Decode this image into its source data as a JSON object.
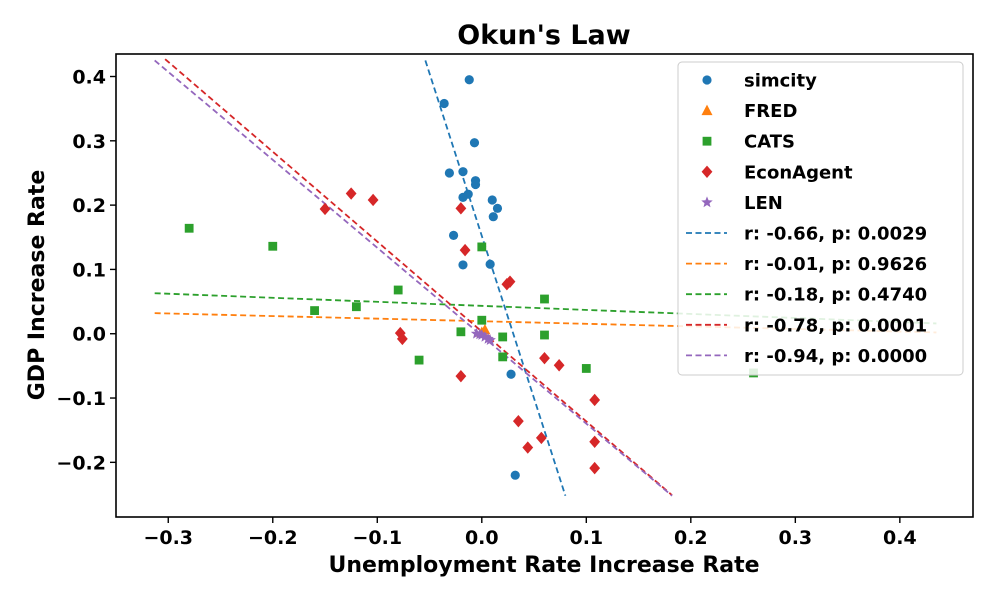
{
  "chart_data": {
    "type": "scatter",
    "title": "Okun's Law",
    "xlabel": "Unemployment Rate Increase Rate",
    "ylabel": "GDP Increase Rate",
    "xlim": [
      -0.35,
      0.47
    ],
    "ylim": [
      -0.285,
      0.435
    ],
    "xticks": [
      -0.3,
      -0.2,
      -0.1,
      0.0,
      0.1,
      0.2,
      0.3,
      0.4
    ],
    "xtick_labels": [
      "−0.3",
      "−0.2",
      "−0.1",
      "0.0",
      "0.1",
      "0.2",
      "0.3",
      "0.4"
    ],
    "yticks": [
      0.4,
      0.3,
      0.2,
      0.1,
      0.0,
      -0.1,
      -0.2
    ],
    "ytick_labels": [
      "0.4",
      "0.3",
      "0.2",
      "0.1",
      "0.0",
      "−0.1",
      "−0.2"
    ],
    "legend_position": "top-right",
    "series": [
      {
        "name": "simcity",
        "marker": "circle",
        "color": "#1f77b4",
        "points": [
          [
            -0.012,
            0.395
          ],
          [
            -0.036,
            0.358
          ],
          [
            -0.007,
            0.297
          ],
          [
            -0.031,
            0.25
          ],
          [
            -0.018,
            0.252
          ],
          [
            -0.006,
            0.238
          ],
          [
            -0.006,
            0.232
          ],
          [
            -0.018,
            0.212
          ],
          [
            -0.013,
            0.217
          ],
          [
            0.01,
            0.208
          ],
          [
            0.015,
            0.195
          ],
          [
            0.011,
            0.182
          ],
          [
            -0.027,
            0.153
          ],
          [
            0.008,
            0.108
          ],
          [
            -0.018,
            0.107
          ],
          [
            0.028,
            -0.063
          ],
          [
            0.032,
            -0.22
          ]
        ]
      },
      {
        "name": "FRED",
        "marker": "triangle",
        "color": "#ff7f0e",
        "points": [
          [
            0.003,
            0.006
          ],
          [
            0.0,
            0.002
          ]
        ]
      },
      {
        "name": "CATS",
        "marker": "square",
        "color": "#2ca02c",
        "points": [
          [
            -0.28,
            0.164
          ],
          [
            -0.2,
            0.136
          ],
          [
            -0.16,
            0.036
          ],
          [
            -0.12,
            0.042
          ],
          [
            -0.08,
            0.068
          ],
          [
            -0.06,
            -0.041
          ],
          [
            -0.02,
            0.003
          ],
          [
            0.0,
            0.021
          ],
          [
            0.0,
            0.135
          ],
          [
            0.02,
            -0.005
          ],
          [
            0.02,
            -0.036
          ],
          [
            0.06,
            0.054
          ],
          [
            0.06,
            -0.002
          ],
          [
            0.1,
            -0.054
          ],
          [
            0.26,
            -0.061
          ]
        ]
      },
      {
        "name": "EconAgent",
        "marker": "diamond",
        "color": "#d62728",
        "points": [
          [
            -0.15,
            0.194
          ],
          [
            -0.125,
            0.218
          ],
          [
            -0.104,
            0.208
          ],
          [
            -0.078,
            0.001
          ],
          [
            -0.076,
            -0.008
          ],
          [
            -0.02,
            0.195
          ],
          [
            -0.016,
            0.13
          ],
          [
            -0.02,
            -0.066
          ],
          [
            0.024,
            0.077
          ],
          [
            0.027,
            0.081
          ],
          [
            0.035,
            -0.136
          ],
          [
            0.044,
            -0.177
          ],
          [
            0.057,
            -0.162
          ],
          [
            0.06,
            -0.038
          ],
          [
            0.074,
            -0.049
          ],
          [
            0.108,
            -0.103
          ],
          [
            0.108,
            -0.168
          ],
          [
            0.108,
            -0.209
          ]
        ]
      },
      {
        "name": "LEN",
        "marker": "star",
        "color": "#9467bd",
        "points": [
          [
            -0.005,
            0.0
          ],
          [
            0.0,
            -0.002
          ],
          [
            0.003,
            -0.005
          ],
          [
            0.006,
            -0.008
          ],
          [
            0.008,
            -0.01
          ],
          [
            -0.002,
            -0.001
          ]
        ]
      }
    ],
    "fit_lines": [
      {
        "label": "r: -0.66, p: 0.0029",
        "color": "#1f77b4",
        "x": [
          -0.054,
          0.08
        ],
        "y": [
          0.425,
          -0.252
        ]
      },
      {
        "label": "r: -0.01, p: 0.9626",
        "color": "#ff7f0e",
        "x": [
          -0.313,
          0.435
        ],
        "y": [
          0.032,
          0.002
        ]
      },
      {
        "label": "r: -0.18, p: 0.4740",
        "color": "#2ca02c",
        "x": [
          -0.313,
          0.435
        ],
        "y": [
          0.063,
          0.016
        ]
      },
      {
        "label": "r: -0.78, p: 0.0001",
        "color": "#d62728",
        "x": [
          -0.303,
          0.182
        ],
        "y": [
          0.427,
          -0.251
        ]
      },
      {
        "label": "r: -0.94, p: 0.0000",
        "color": "#9467bd",
        "x": [
          -0.313,
          0.182
        ],
        "y": [
          0.425,
          -0.252
        ]
      }
    ]
  }
}
